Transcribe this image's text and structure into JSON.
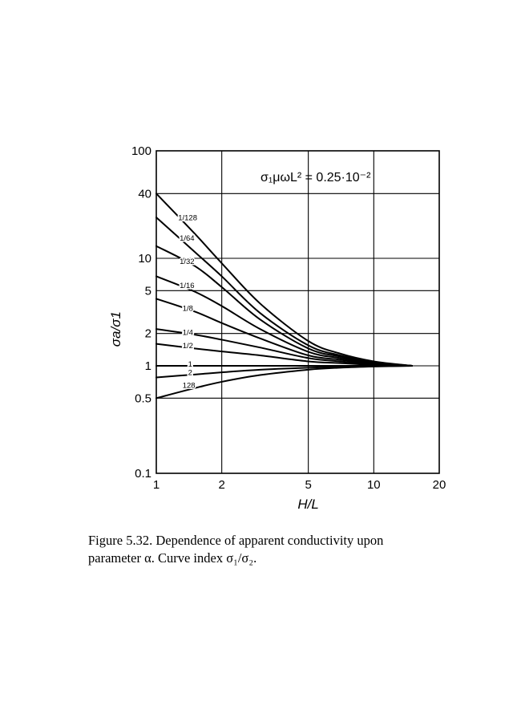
{
  "caption": {
    "line1": "Figure 5.32.  Dependence of apparent conductivity upon",
    "line2": "parameter α. Curve index σ₁/σ₂."
  },
  "chart_data": {
    "type": "line",
    "title": "",
    "annotation": "σ₁μωL² = 0.25·10⁻²",
    "xlabel": "H/L",
    "ylabel": "σa/σ1",
    "x_scale": "log",
    "y_scale": "log",
    "xlim": [
      1,
      20
    ],
    "ylim": [
      0.1,
      100
    ],
    "x_ticks": [
      1,
      2,
      5,
      10,
      20
    ],
    "x_tick_labels": [
      "1",
      "2",
      "5",
      "10",
      "20"
    ],
    "y_ticks": [
      0.1,
      0.5,
      1,
      2,
      5,
      10,
      40,
      100
    ],
    "y_tick_labels": [
      "0.1",
      "0.5",
      "1",
      "2",
      "5",
      "10",
      "40",
      "100"
    ],
    "grid": true,
    "series": [
      {
        "name": "1/128",
        "x": [
          1,
          1.5,
          2,
          3,
          5,
          7,
          10,
          15
        ],
        "y": [
          40,
          17,
          9,
          3.8,
          1.7,
          1.3,
          1.1,
          1.0
        ]
      },
      {
        "name": "1/64",
        "x": [
          1,
          1.5,
          2,
          3,
          5,
          7,
          10,
          15
        ],
        "y": [
          24,
          11.5,
          6.8,
          3.1,
          1.55,
          1.25,
          1.08,
          1.0
        ]
      },
      {
        "name": "1/32",
        "x": [
          1,
          1.5,
          2,
          3,
          5,
          7,
          10,
          15
        ],
        "y": [
          13,
          8.5,
          5.4,
          2.7,
          1.45,
          1.22,
          1.07,
          1.0
        ]
      },
      {
        "name": "1/16",
        "x": [
          1,
          1.5,
          2,
          3,
          5,
          7,
          10,
          15
        ],
        "y": [
          6.8,
          4.9,
          3.6,
          2.2,
          1.35,
          1.18,
          1.06,
          1.0
        ]
      },
      {
        "name": "1/8",
        "x": [
          1,
          1.5,
          2,
          3,
          5,
          7,
          10,
          15
        ],
        "y": [
          4.2,
          3.2,
          2.5,
          1.8,
          1.25,
          1.14,
          1.05,
          1.0
        ]
      },
      {
        "name": "1/4",
        "x": [
          1,
          1.5,
          2,
          3,
          5,
          7,
          10,
          15
        ],
        "y": [
          2.2,
          1.95,
          1.75,
          1.48,
          1.18,
          1.1,
          1.04,
          1.0
        ]
      },
      {
        "name": "1/2",
        "x": [
          1,
          1.5,
          2,
          3,
          5,
          7,
          10,
          15
        ],
        "y": [
          1.6,
          1.45,
          1.36,
          1.25,
          1.1,
          1.06,
          1.02,
          1.0
        ]
      },
      {
        "name": "1",
        "x": [
          1,
          1.5,
          2,
          3,
          5,
          7,
          10,
          15
        ],
        "y": [
          1,
          1,
          1,
          1,
          1,
          1,
          1,
          1
        ]
      },
      {
        "name": "2",
        "x": [
          1,
          1.5,
          2,
          3,
          5,
          7,
          10,
          15
        ],
        "y": [
          0.78,
          0.83,
          0.87,
          0.92,
          0.96,
          0.98,
          0.99,
          1.0
        ]
      },
      {
        "name": "128",
        "x": [
          1,
          1.5,
          2,
          3,
          5,
          7,
          10,
          15
        ],
        "y": [
          0.5,
          0.62,
          0.71,
          0.82,
          0.92,
          0.96,
          0.985,
          1.0
        ]
      }
    ],
    "curve_labels": [
      {
        "text": "1/128",
        "x": 1.26,
        "y": 24
      },
      {
        "text": "1/64",
        "x": 1.28,
        "y": 15.5
      },
      {
        "text": "1/32",
        "x": 1.28,
        "y": 9.4
      },
      {
        "text": "1/16",
        "x": 1.28,
        "y": 5.6
      },
      {
        "text": "1/8",
        "x": 1.32,
        "y": 3.45
      },
      {
        "text": "1/4",
        "x": 1.32,
        "y": 2.05
      },
      {
        "text": "1/2",
        "x": 1.32,
        "y": 1.55
      },
      {
        "text": "1",
        "x": 1.4,
        "y": 1.04
      },
      {
        "text": "2",
        "x": 1.4,
        "y": 0.87
      },
      {
        "text": "128",
        "x": 1.32,
        "y": 0.66
      }
    ]
  }
}
